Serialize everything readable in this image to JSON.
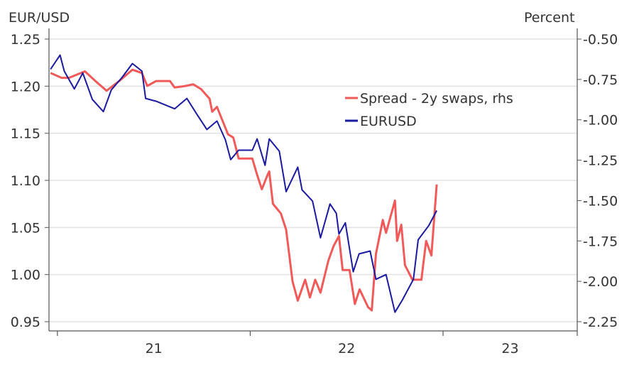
{
  "chart_data": {
    "type": "line",
    "left_axis_title": "EUR/USD",
    "right_axis_title": "Percent",
    "x_tick_labels": [
      "21",
      "22",
      "23"
    ],
    "x_range": [
      "2020-12-16",
      "2023-09-12"
    ],
    "left_ylim": [
      0.95,
      1.25
    ],
    "left_ticks": [
      "1.25",
      "1.20",
      "1.15",
      "1.10",
      "1.05",
      "1.00",
      "0.95"
    ],
    "right_ylim": [
      -2.25,
      -0.5
    ],
    "right_ticks": [
      "-0.50",
      "-0.75",
      "-1.00",
      "-1.25",
      "-1.50",
      "-1.75",
      "-2.00",
      "-2.25"
    ],
    "grid": "horizontal",
    "legend_position": "upper-right",
    "series": [
      {
        "name": "Spread - 2y swaps, rhs",
        "axis": "right",
        "color": "#f25a5a",
        "points": [
          [
            "2020-12-19",
            -0.71
          ],
          [
            "2021-01-09",
            -0.74
          ],
          [
            "2021-01-23",
            -0.74
          ],
          [
            "2021-02-22",
            -0.7
          ],
          [
            "2021-03-14",
            -0.76
          ],
          [
            "2021-04-04",
            -0.82
          ],
          [
            "2021-04-28",
            -0.76
          ],
          [
            "2021-05-23",
            -0.69
          ],
          [
            "2021-06-10",
            -0.71
          ],
          [
            "2021-06-20",
            -0.79
          ],
          [
            "2021-07-07",
            -0.76
          ],
          [
            "2021-08-02",
            -0.76
          ],
          [
            "2021-08-11",
            -0.8
          ],
          [
            "2021-09-01",
            -0.79
          ],
          [
            "2021-09-15",
            -0.78
          ],
          [
            "2021-09-30",
            -0.81
          ],
          [
            "2021-10-16",
            -0.87
          ],
          [
            "2021-10-21",
            -0.95
          ],
          [
            "2021-10-30",
            -0.92
          ],
          [
            "2021-11-10",
            -1.01
          ],
          [
            "2021-11-20",
            -1.09
          ],
          [
            "2021-11-30",
            -1.11
          ],
          [
            "2021-12-10",
            -1.24
          ],
          [
            "2022-01-05",
            -1.24
          ],
          [
            "2022-01-14",
            -1.34
          ],
          [
            "2022-01-23",
            -1.43
          ],
          [
            "2022-02-03",
            -1.34
          ],
          [
            "2022-02-06",
            -1.32
          ],
          [
            "2022-02-13",
            -1.52
          ],
          [
            "2022-02-28",
            -1.58
          ],
          [
            "2022-03-10",
            -1.68
          ],
          [
            "2022-03-22",
            -2.0
          ],
          [
            "2022-04-01",
            -2.12
          ],
          [
            "2022-04-15",
            -1.99
          ],
          [
            "2022-04-24",
            -2.1
          ],
          [
            "2022-05-04",
            -1.99
          ],
          [
            "2022-05-14",
            -2.07
          ],
          [
            "2022-05-29",
            -1.87
          ],
          [
            "2022-06-08",
            -1.78
          ],
          [
            "2022-06-18",
            -1.72
          ],
          [
            "2022-06-25",
            -1.93
          ],
          [
            "2022-07-08",
            -1.93
          ],
          [
            "2022-07-18",
            -2.14
          ],
          [
            "2022-07-27",
            -2.05
          ],
          [
            "2022-08-12",
            -2.16
          ],
          [
            "2022-08-19",
            -2.18
          ],
          [
            "2022-08-27",
            -1.83
          ],
          [
            "2022-09-09",
            -1.62
          ],
          [
            "2022-09-15",
            -1.7
          ],
          [
            "2022-10-02",
            -1.5
          ],
          [
            "2022-10-06",
            -1.75
          ],
          [
            "2022-10-14",
            -1.65
          ],
          [
            "2022-10-21",
            -1.9
          ],
          [
            "2022-11-04",
            -1.99
          ],
          [
            "2022-11-21",
            -1.99
          ],
          [
            "2022-11-30",
            -1.75
          ],
          [
            "2022-12-10",
            -1.84
          ],
          [
            "2022-12-20",
            -1.4
          ]
        ]
      },
      {
        "name": "EURUSD",
        "axis": "left",
        "color": "#1a1aa0",
        "points": [
          [
            "2020-12-19",
            1.218
          ],
          [
            "2021-01-06",
            1.233
          ],
          [
            "2021-01-14",
            1.216
          ],
          [
            "2021-02-02",
            1.197
          ],
          [
            "2021-02-18",
            1.214
          ],
          [
            "2021-03-08",
            1.186
          ],
          [
            "2021-03-29",
            1.173
          ],
          [
            "2021-04-13",
            1.196
          ],
          [
            "2021-05-03",
            1.209
          ],
          [
            "2021-05-23",
            1.224
          ],
          [
            "2021-06-10",
            1.216
          ],
          [
            "2021-06-17",
            1.187
          ],
          [
            "2021-07-07",
            1.184
          ],
          [
            "2021-08-11",
            1.176
          ],
          [
            "2021-09-03",
            1.187
          ],
          [
            "2021-09-21",
            1.171
          ],
          [
            "2021-10-11",
            1.154
          ],
          [
            "2021-10-30",
            1.163
          ],
          [
            "2021-11-15",
            1.143
          ],
          [
            "2021-11-25",
            1.122
          ],
          [
            "2021-12-10",
            1.132
          ],
          [
            "2022-01-05",
            1.132
          ],
          [
            "2022-01-14",
            1.144
          ],
          [
            "2022-01-29",
            1.116
          ],
          [
            "2022-02-06",
            1.144
          ],
          [
            "2022-02-25",
            1.131
          ],
          [
            "2022-03-10",
            1.088
          ],
          [
            "2022-04-01",
            1.114
          ],
          [
            "2022-04-09",
            1.09
          ],
          [
            "2022-04-29",
            1.078
          ],
          [
            "2022-05-14",
            1.039
          ],
          [
            "2022-06-01",
            1.075
          ],
          [
            "2022-06-13",
            1.065
          ],
          [
            "2022-06-18",
            1.043
          ],
          [
            "2022-06-30",
            1.055
          ],
          [
            "2022-07-15",
            1.003
          ],
          [
            "2022-07-26",
            1.022
          ],
          [
            "2022-08-16",
            1.025
          ],
          [
            "2022-08-27",
            0.995
          ],
          [
            "2022-09-15",
            1.0
          ],
          [
            "2022-10-02",
            0.96
          ],
          [
            "2022-10-16",
            0.973
          ],
          [
            "2022-11-06",
            0.995
          ],
          [
            "2022-11-15",
            1.037
          ],
          [
            "2022-12-05",
            1.052
          ],
          [
            "2022-12-20",
            1.068
          ]
        ]
      }
    ]
  }
}
